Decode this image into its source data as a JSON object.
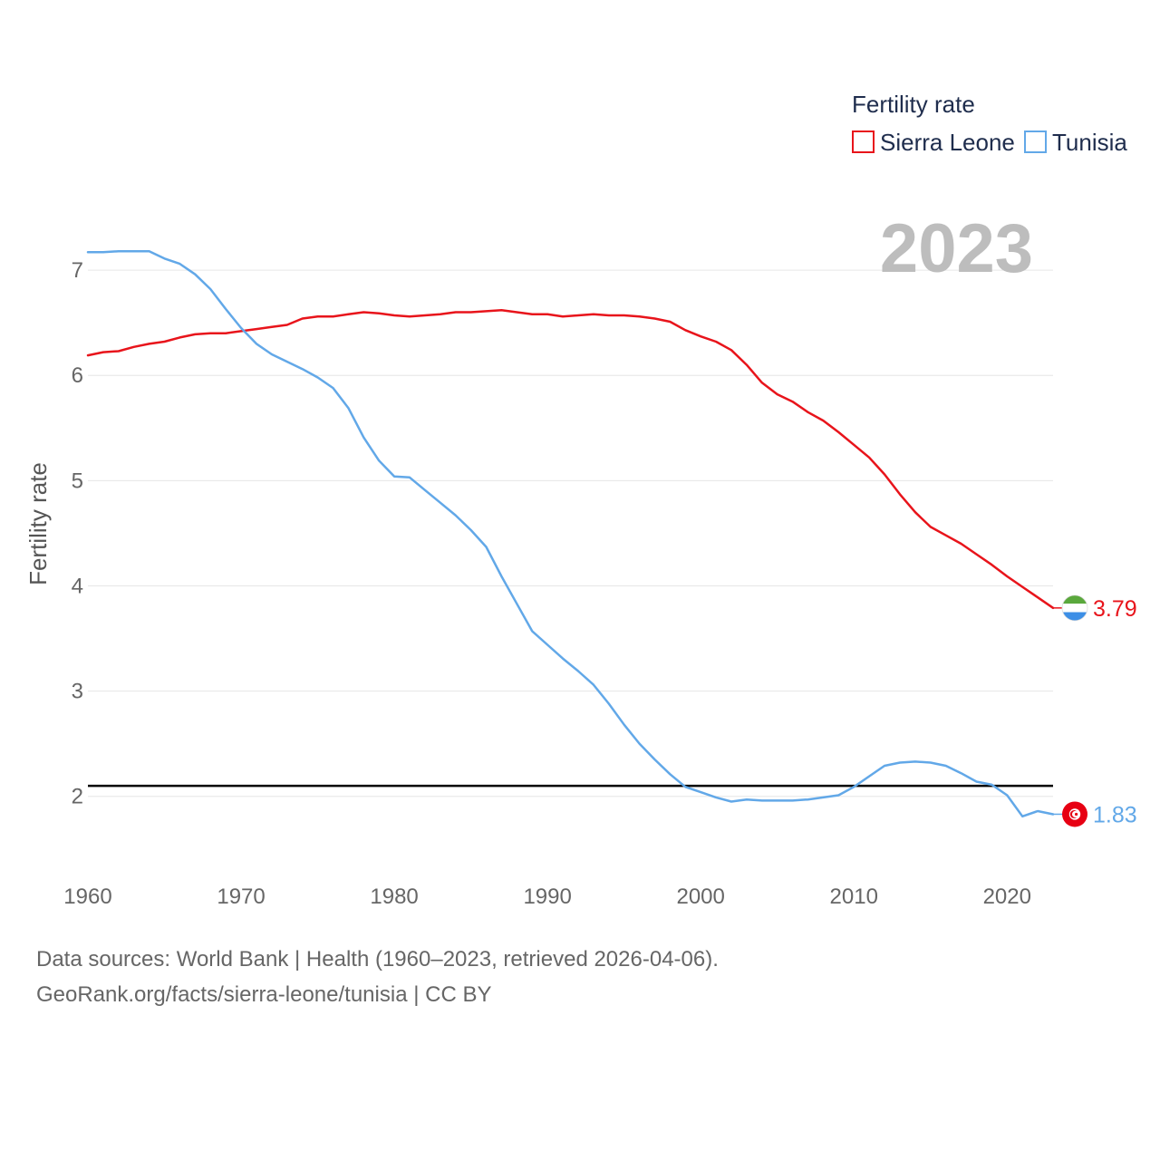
{
  "chart_data": {
    "type": "line",
    "legend_title": "Fertility rate",
    "ylabel": "Fertility rate",
    "year_label": "2023",
    "xlim": [
      1960,
      2023
    ],
    "ylim": [
      1.3,
      7.5
    ],
    "x_ticks": [
      1960,
      1970,
      1980,
      1990,
      2000,
      2010,
      2020
    ],
    "y_ticks": [
      2,
      3,
      4,
      5,
      6,
      7
    ],
    "reference_line": 2.1,
    "x": [
      1960,
      1961,
      1962,
      1963,
      1964,
      1965,
      1966,
      1967,
      1968,
      1969,
      1970,
      1971,
      1972,
      1973,
      1974,
      1975,
      1976,
      1977,
      1978,
      1979,
      1980,
      1981,
      1982,
      1983,
      1984,
      1985,
      1986,
      1987,
      1988,
      1989,
      1990,
      1991,
      1992,
      1993,
      1994,
      1995,
      1996,
      1997,
      1998,
      1999,
      2000,
      2001,
      2002,
      2003,
      2004,
      2005,
      2006,
      2007,
      2008,
      2009,
      2010,
      2011,
      2012,
      2013,
      2014,
      2015,
      2016,
      2017,
      2018,
      2019,
      2020,
      2021,
      2022,
      2023
    ],
    "series": [
      {
        "name": "Sierra Leone",
        "color": "#e8141b",
        "end_label": "3.79",
        "flag": "sierra-leone-flag",
        "values": [
          6.19,
          6.22,
          6.23,
          6.27,
          6.3,
          6.32,
          6.36,
          6.39,
          6.4,
          6.4,
          6.42,
          6.44,
          6.46,
          6.48,
          6.54,
          6.56,
          6.56,
          6.58,
          6.6,
          6.59,
          6.57,
          6.56,
          6.57,
          6.58,
          6.6,
          6.6,
          6.61,
          6.62,
          6.6,
          6.58,
          6.58,
          6.56,
          6.57,
          6.58,
          6.57,
          6.57,
          6.56,
          6.54,
          6.51,
          6.43,
          6.37,
          6.32,
          6.24,
          6.1,
          5.93,
          5.82,
          5.75,
          5.65,
          5.57,
          5.46,
          5.34,
          5.22,
          5.06,
          4.87,
          4.7,
          4.56,
          4.48,
          4.4,
          4.3,
          4.2,
          4.09,
          3.99,
          3.89,
          3.79
        ]
      },
      {
        "name": "Tunisia",
        "color": "#62a8e8",
        "end_label": "1.83",
        "flag": "tunisia-flag",
        "values": [
          7.17,
          7.17,
          7.18,
          7.18,
          7.18,
          7.11,
          7.06,
          6.96,
          6.82,
          6.63,
          6.45,
          6.3,
          6.2,
          6.13,
          6.06,
          5.98,
          5.88,
          5.69,
          5.41,
          5.19,
          5.04,
          5.03,
          4.91,
          4.79,
          4.67,
          4.53,
          4.37,
          4.09,
          3.83,
          3.57,
          3.44,
          3.31,
          3.19,
          3.06,
          2.88,
          2.68,
          2.5,
          2.35,
          2.21,
          2.09,
          2.04,
          1.99,
          1.95,
          1.97,
          1.96,
          1.96,
          1.96,
          1.97,
          1.99,
          2.01,
          2.09,
          2.19,
          2.29,
          2.32,
          2.33,
          2.32,
          2.29,
          2.22,
          2.14,
          2.11,
          2.01,
          1.81,
          1.86,
          1.83
        ]
      }
    ]
  },
  "footer": {
    "source_line": "Data sources: World Bank | Health (1960–2023, retrieved 2026-04-06).",
    "url_line": "GeoRank.org/facts/sierra-leone/tunisia | CC BY"
  },
  "colors": {
    "grid": "#e6e6e6",
    "reference": "#000000",
    "year_label": "#bdbdbd"
  }
}
